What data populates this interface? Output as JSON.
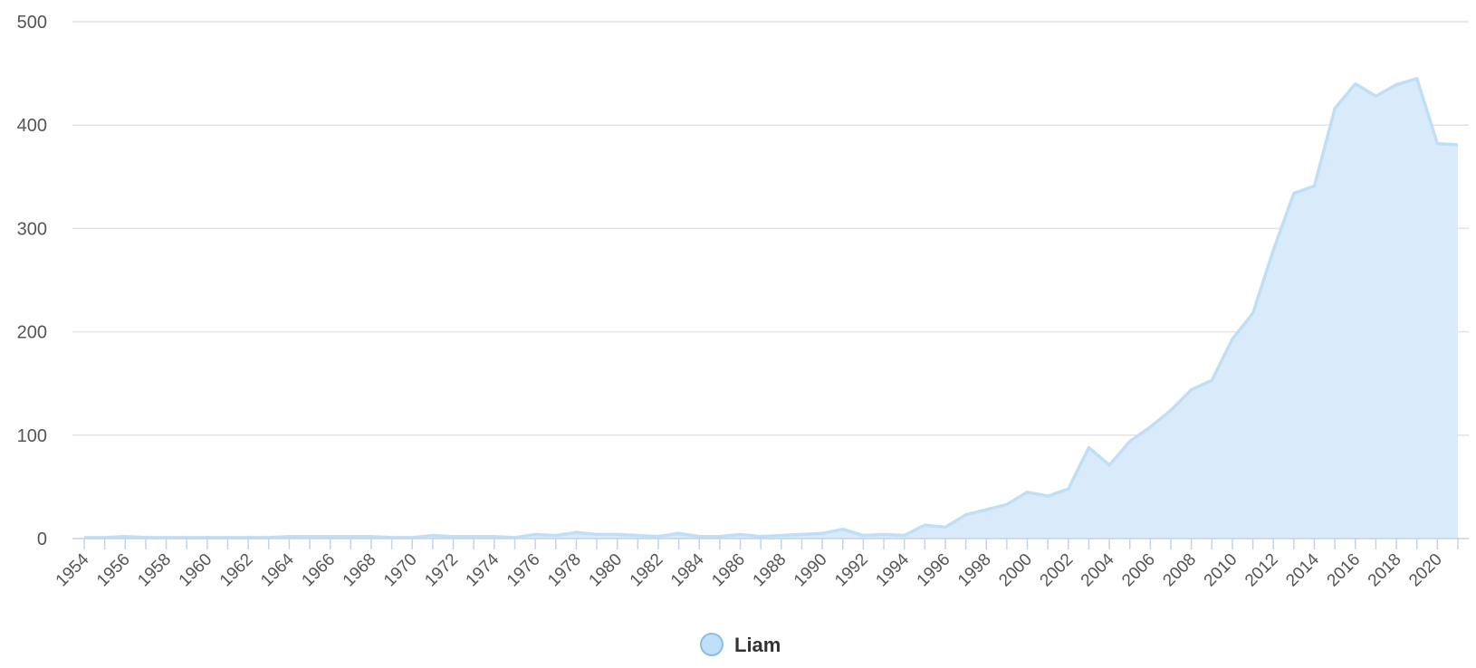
{
  "chart_data": {
    "type": "area",
    "title": "",
    "xlabel": "",
    "ylabel": "",
    "ylim": [
      0,
      500
    ],
    "yticks": [
      0,
      100,
      200,
      300,
      400,
      500
    ],
    "x": [
      1954,
      1955,
      1956,
      1957,
      1958,
      1959,
      1960,
      1961,
      1962,
      1963,
      1964,
      1965,
      1966,
      1967,
      1968,
      1969,
      1970,
      1971,
      1972,
      1973,
      1974,
      1975,
      1976,
      1977,
      1978,
      1979,
      1980,
      1981,
      1982,
      1983,
      1984,
      1985,
      1986,
      1987,
      1988,
      1989,
      1990,
      1991,
      1992,
      1993,
      1994,
      1995,
      1996,
      1997,
      1998,
      1999,
      2000,
      2001,
      2002,
      2003,
      2004,
      2005,
      2006,
      2007,
      2008,
      2009,
      2010,
      2011,
      2012,
      2013,
      2014,
      2015,
      2016,
      2017,
      2018,
      2019,
      2020,
      2021
    ],
    "x_tick_labels": [
      "1954",
      "1956",
      "1958",
      "1960",
      "1962",
      "1964",
      "1966",
      "1968",
      "1970",
      "1972",
      "1974",
      "1976",
      "1978",
      "1980",
      "1982",
      "1984",
      "1986",
      "1988",
      "1990",
      "1992",
      "1994",
      "1996",
      "1998",
      "2000",
      "2002",
      "2004",
      "2006",
      "2008",
      "2010",
      "2012",
      "2014",
      "2016",
      "2018",
      "2020"
    ],
    "series": [
      {
        "name": "Liam",
        "values": [
          1,
          1,
          2,
          1,
          1,
          1,
          1,
          1,
          1,
          1,
          2,
          2,
          2,
          2,
          2,
          1,
          1,
          3,
          2,
          2,
          2,
          1,
          4,
          3,
          6,
          4,
          4,
          3,
          2,
          5,
          2,
          2,
          4,
          2,
          3,
          4,
          5,
          9,
          3,
          4,
          3,
          13,
          11,
          23,
          28,
          33,
          45,
          41,
          48,
          88,
          71,
          94,
          108,
          124,
          144,
          153,
          193,
          218,
          279,
          334,
          341,
          416,
          440,
          428,
          439,
          445,
          382,
          381
        ]
      }
    ],
    "legend": {
      "position": "bottom-center",
      "label": "Liam"
    },
    "grid": true,
    "colors": {
      "fill": "#d9ebfa",
      "line": "#bfdff7",
      "grid": "#e3e3e3",
      "axis": "#c6d2e6",
      "legend_marker_fill": "#bfe0f8",
      "legend_marker_stroke": "#8bbde6"
    }
  }
}
